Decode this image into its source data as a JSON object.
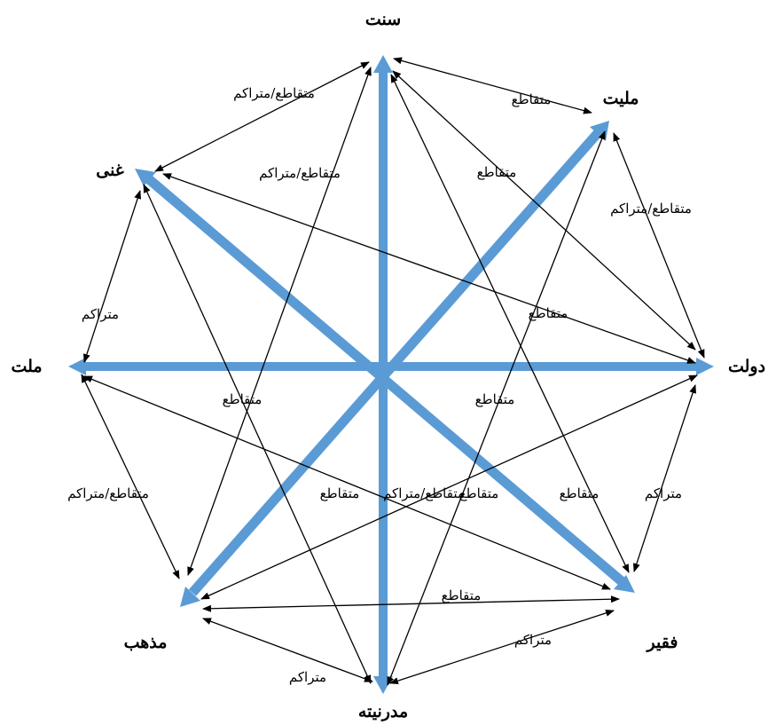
{
  "colors": {
    "axis": "#5b9bd5",
    "edge": "#000000",
    "background": "#ffffff"
  },
  "nodes": {
    "sunnat": "سنت",
    "melliyat": "ملیت",
    "dowlat": "دولت",
    "faqir": "فقیر",
    "modernite": "مدرنیته",
    "mazhab": "مذهب",
    "mellat": "ملت",
    "ghani": "غنی"
  },
  "edge_labels": {
    "sunnat_melliyat": "متقاطع",
    "sunnat_ghani": "متقاطع/متراکم",
    "sunnat_mazhab": "متقاطع/متراکم",
    "sunnat_dowlat": "متقاطع",
    "melliyat_dowlat": "متقاطع/متراکم",
    "ghani_dowlat": "متقاطع",
    "ghani_mellat": "متراکم",
    "mellat_mazhab": "متقاطع/متراکم",
    "ghani_modernite": "متقاطع",
    "mellat_faqir": "متقاطع",
    "melliyat_modernite": "متقاطع/متراکم",
    "sunnat_faqir": "متقاطع",
    "mazhab_dowlat": "متقاطع",
    "dowlat_faqir": "متراکم",
    "mazhab_faqir": "متقاطع",
    "faqir_modernite": "متراکم",
    "mazhab_modernite": "متراکم"
  }
}
